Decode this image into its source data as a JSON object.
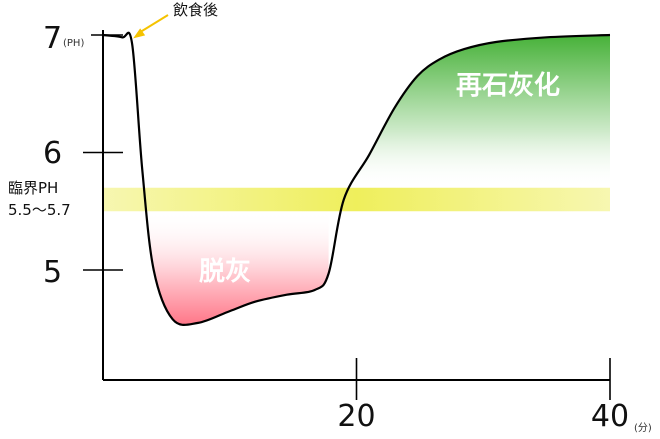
{
  "chart_data": {
    "type": "line",
    "title": "",
    "y_unit": "(PH)",
    "x_unit": "(分)",
    "y_ticks": [
      {
        "value": 7,
        "label": "7"
      },
      {
        "value": 6,
        "label": "6"
      },
      {
        "value": 5,
        "label": "5"
      }
    ],
    "x_ticks": [
      {
        "value": 20,
        "label": "20"
      },
      {
        "value": 40,
        "label": "40"
      }
    ],
    "xlim": [
      0,
      40
    ],
    "ylim": [
      4.1,
      7.1
    ],
    "grid": false,
    "series": [
      {
        "color": "#000000",
        "x": [
          0.0,
          1.5,
          2.3,
          3.1,
          4.0,
          5.5,
          7.5,
          10.0,
          12.0,
          14.5,
          16.7,
          17.8,
          19.0,
          21.0,
          23.0,
          24.8,
          26.5,
          28.5,
          31.0,
          35.0,
          40.0
        ],
        "y": [
          7.0,
          6.98,
          6.92,
          5.85,
          5.0,
          4.58,
          4.55,
          4.65,
          4.73,
          4.79,
          4.83,
          4.97,
          5.6,
          5.98,
          6.38,
          6.65,
          6.79,
          6.88,
          6.94,
          6.98,
          7.0
        ]
      }
    ],
    "critical_band": {
      "label_line1": "臨界PH",
      "label_line2": "5.5〜5.7",
      "y_min": 5.5,
      "y_max": 5.7,
      "color": "#f0f05a"
    },
    "regions": [
      {
        "label": "脱灰",
        "color": "#ff5d72"
      },
      {
        "label": "再石灰化",
        "color": "#3fae30"
      }
    ],
    "annotations": [
      {
        "text": "飲食後",
        "x": 2.3,
        "y": 6.98,
        "arrow_color": "#f5c300"
      }
    ]
  }
}
